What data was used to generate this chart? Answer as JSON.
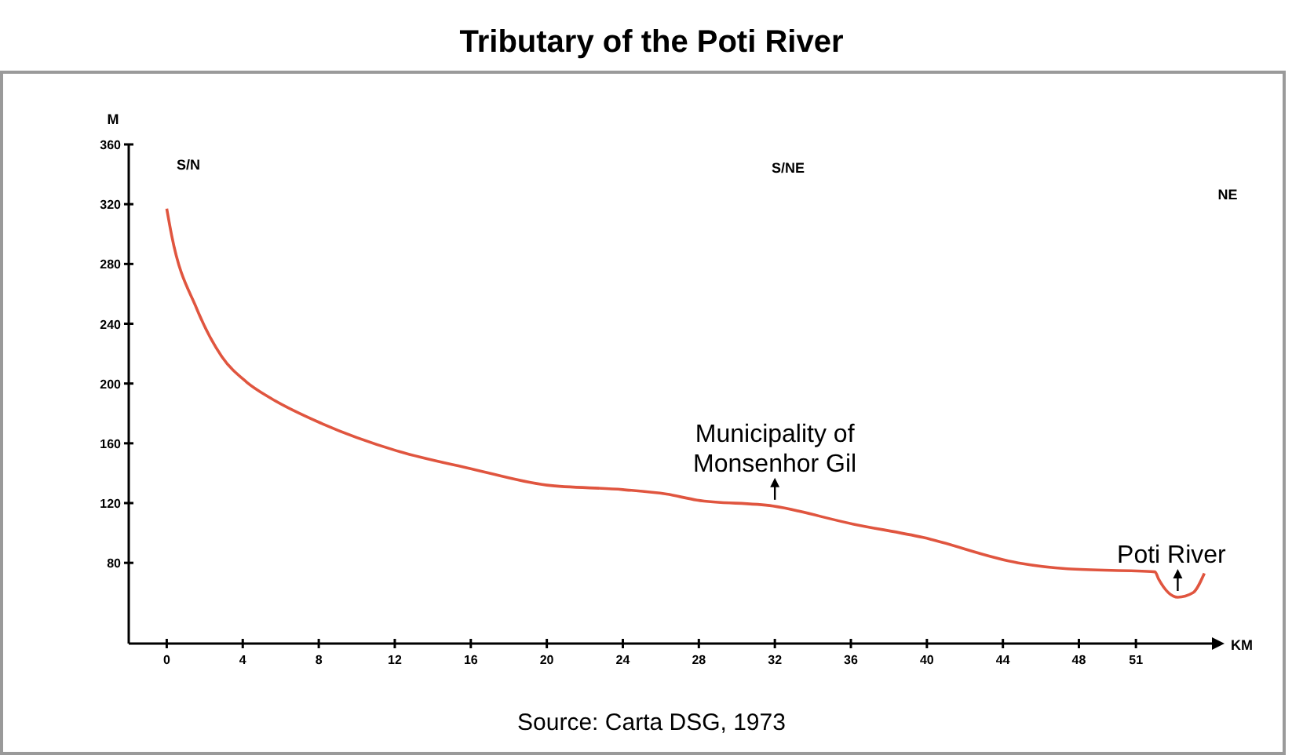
{
  "chart_data": {
    "type": "line",
    "title": "Tributary of the Poti River",
    "xlabel": "KM",
    "ylabel": "M",
    "x": [
      0,
      0.26,
      1.58,
      2.9,
      4.2,
      5.5,
      8.2,
      12.1,
      16,
      20,
      24,
      26.3,
      27.9,
      31.9,
      36.1,
      39.8,
      44.8,
      47.4,
      52,
      52.2,
      53.2,
      54,
      54.6
    ],
    "series": [
      {
        "color": "#e0553f",
        "values": [
          317,
          299,
          250,
          218,
          201,
          190,
          173,
          155,
          143,
          132,
          129,
          126,
          122,
          118,
          106,
          97,
          80,
          76,
          74,
          69,
          57,
          60,
          73
        ]
      }
    ],
    "xlim": [
      -2,
      55
    ],
    "ylim": [
      26,
      360
    ],
    "xticks": [
      0,
      4,
      8,
      12,
      16,
      20,
      24,
      28,
      32,
      36,
      40,
      44,
      48,
      51
    ],
    "yticks": [
      80,
      120,
      160,
      200,
      240,
      280,
      320,
      360
    ],
    "grid": false,
    "marker": "none",
    "line_style": "solid",
    "annotations": [
      "S/N",
      "S/NE",
      "NE",
      {
        "text": "Municipality of Monsenhor Gil",
        "x": 32,
        "y": 118
      },
      {
        "text": "Poti River",
        "x": 53.2,
        "y": 57
      },
      "Source: Carta DSG, 1973"
    ]
  }
}
